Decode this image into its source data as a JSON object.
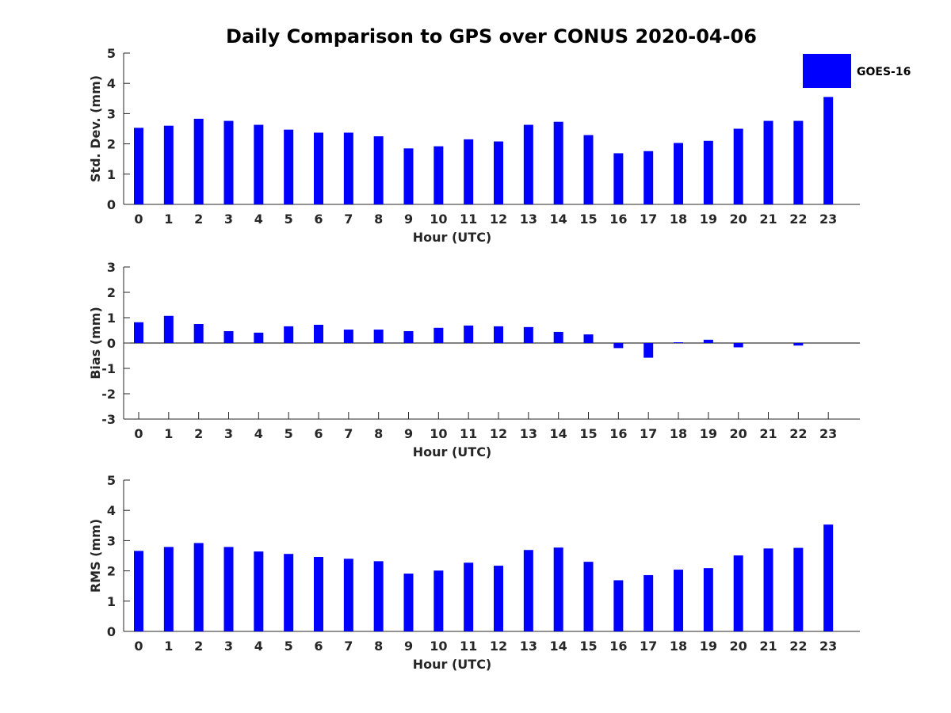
{
  "figure": {
    "title": "Daily Comparison to GPS over CONUS 2020-04-06",
    "bar_color": "#0000ff",
    "axis_color": "#262626"
  },
  "legend": {
    "label": "GOES-16",
    "color": "#0000ff",
    "placement": "top-right"
  },
  "chart_data": [
    {
      "id": "stddev",
      "type": "bar",
      "title": "Daily Comparison to GPS over CONUS 2020-04-06",
      "xlabel": "Hour (UTC)",
      "ylabel": "Std. Dev. (mm)",
      "categories": [
        "0",
        "1",
        "2",
        "3",
        "4",
        "5",
        "6",
        "7",
        "8",
        "9",
        "10",
        "11",
        "12",
        "13",
        "14",
        "15",
        "16",
        "17",
        "18",
        "19",
        "20",
        "21",
        "22",
        "23"
      ],
      "ylim": [
        0,
        5
      ],
      "yticks": [
        0,
        1,
        2,
        3,
        4,
        5
      ],
      "series": [
        {
          "name": "GOES-16",
          "values": [
            2.53,
            2.6,
            2.83,
            2.76,
            2.63,
            2.47,
            2.37,
            2.37,
            2.25,
            1.85,
            1.92,
            2.15,
            2.08,
            2.63,
            2.73,
            2.29,
            1.69,
            1.76,
            2.03,
            2.1,
            2.5,
            2.76,
            2.76,
            3.55
          ]
        }
      ]
    },
    {
      "id": "bias",
      "type": "bar",
      "xlabel": "Hour (UTC)",
      "ylabel": "Bias (mm)",
      "categories": [
        "0",
        "1",
        "2",
        "3",
        "4",
        "5",
        "6",
        "7",
        "8",
        "9",
        "10",
        "11",
        "12",
        "13",
        "14",
        "15",
        "16",
        "17",
        "18",
        "19",
        "20",
        "21",
        "22",
        "23"
      ],
      "ylim": [
        -3,
        3
      ],
      "yticks": [
        -3,
        -2,
        -1,
        0,
        1,
        2,
        3
      ],
      "zero_line": true,
      "series": [
        {
          "name": "GOES-16",
          "values": [
            0.82,
            1.07,
            0.75,
            0.47,
            0.41,
            0.66,
            0.72,
            0.53,
            0.53,
            0.47,
            0.6,
            0.69,
            0.66,
            0.63,
            0.44,
            0.34,
            -0.2,
            -0.58,
            0.03,
            0.13,
            -0.17,
            0.0,
            -0.1,
            0.0
          ]
        }
      ]
    },
    {
      "id": "rms",
      "type": "bar",
      "xlabel": "Hour (UTC)",
      "ylabel": "RMS (mm)",
      "categories": [
        "0",
        "1",
        "2",
        "3",
        "4",
        "5",
        "6",
        "7",
        "8",
        "9",
        "10",
        "11",
        "12",
        "13",
        "14",
        "15",
        "16",
        "17",
        "18",
        "19",
        "20",
        "21",
        "22",
        "23"
      ],
      "ylim": [
        0,
        5
      ],
      "yticks": [
        0,
        1,
        2,
        3,
        4,
        5
      ],
      "series": [
        {
          "name": "GOES-16",
          "values": [
            2.66,
            2.79,
            2.92,
            2.79,
            2.64,
            2.56,
            2.46,
            2.4,
            2.32,
            1.91,
            2.01,
            2.27,
            2.17,
            2.69,
            2.77,
            2.3,
            1.69,
            1.86,
            2.04,
            2.09,
            2.51,
            2.74,
            2.76,
            3.53
          ]
        }
      ]
    }
  ]
}
